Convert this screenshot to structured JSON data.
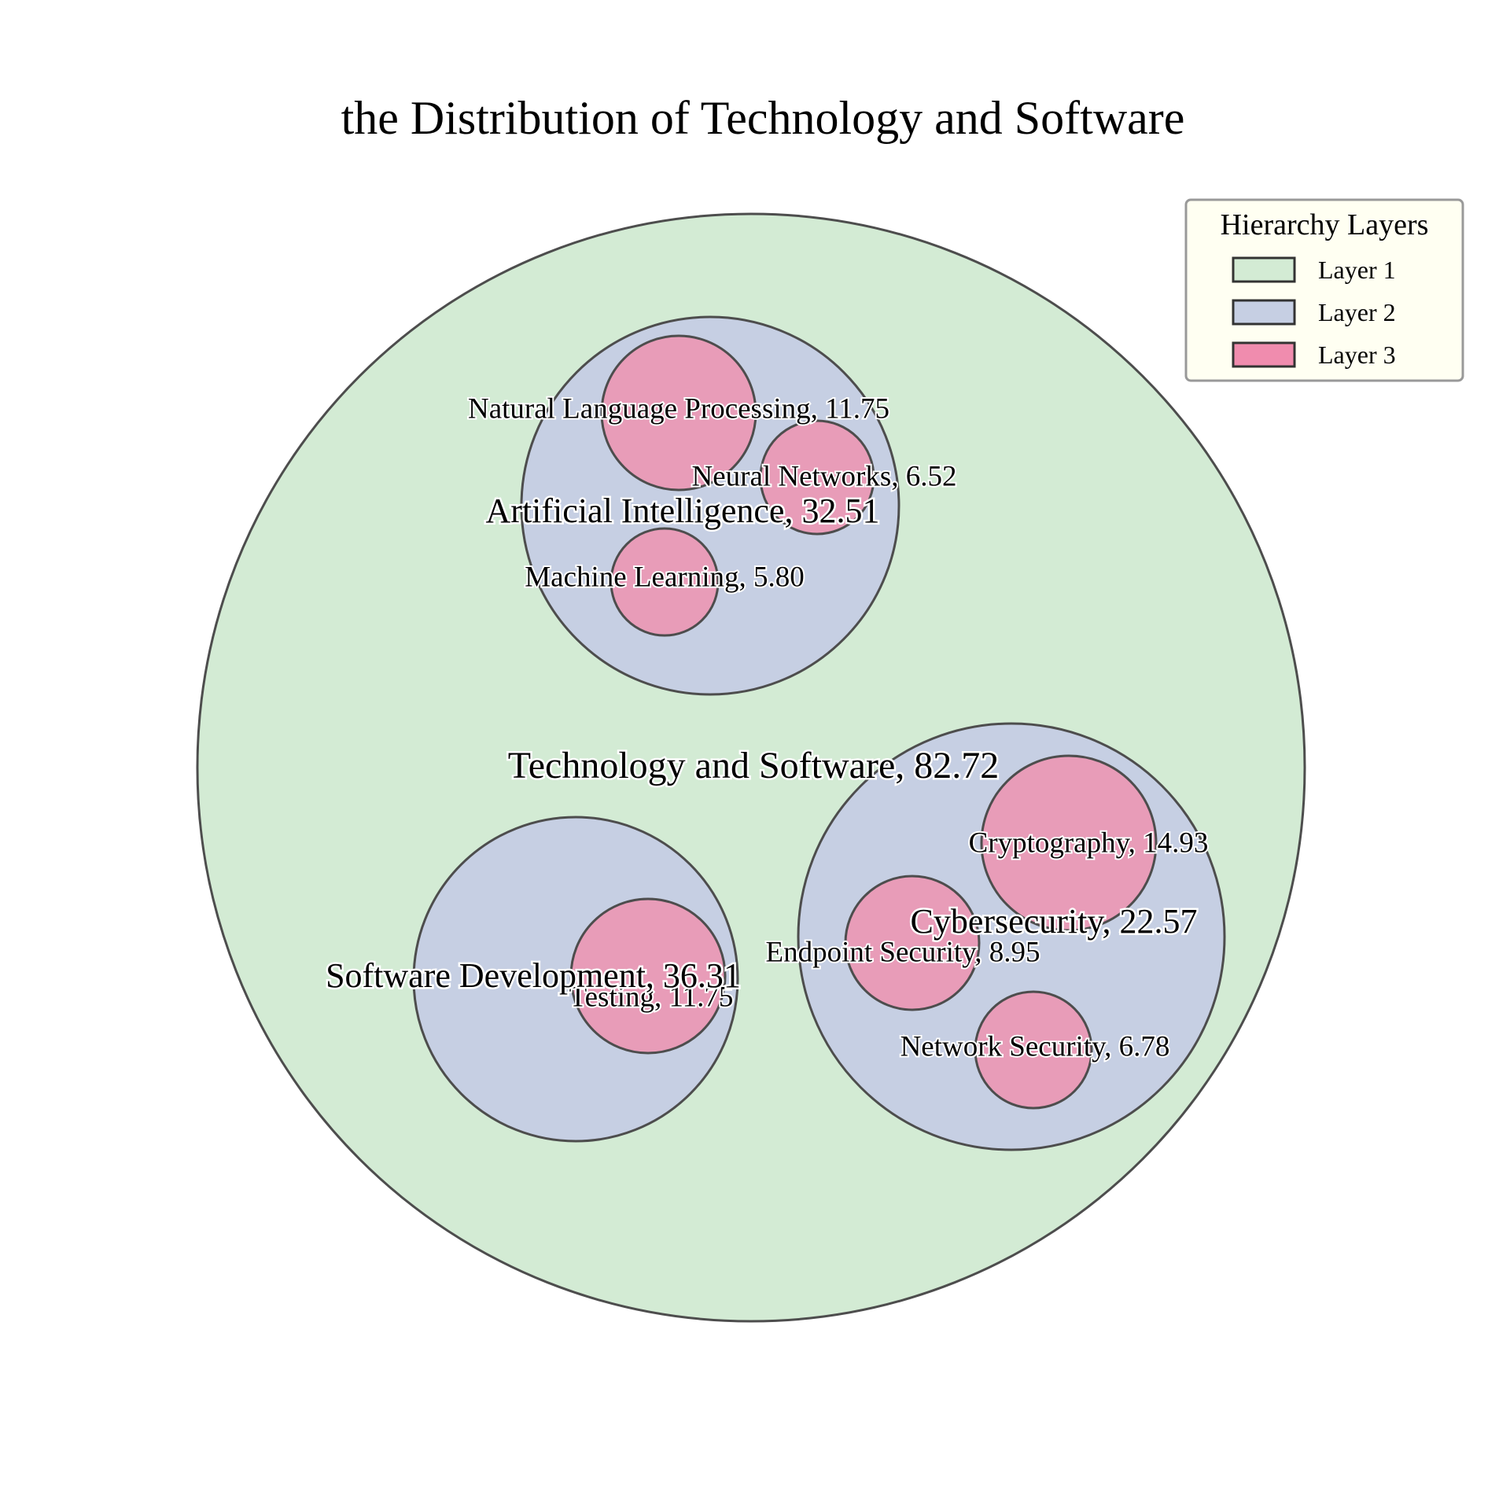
{
  "chart_data": {
    "type": "circle_packing",
    "title": "the Distribution of Technology and Software",
    "legend": {
      "title": "Hierarchy Layers",
      "placement": "top-right",
      "items": [
        {
          "label": "Layer 1",
          "color": "#d3ebd4"
        },
        {
          "label": "Layer 2",
          "color": "#c6cfe3"
        },
        {
          "label": "Layer 3",
          "color": "#f08cae"
        }
      ]
    },
    "colors": {
      "layer1_fill": "#d3ebd4",
      "layer2_fill": "#c6cfe3",
      "layer3_fill": "#e89cb8",
      "stroke": "#4d4d4d"
    },
    "nodes": [
      {
        "id": "root",
        "name": "Technology and Software",
        "value": 82.72,
        "value_label": "82.72",
        "layer": 1,
        "parent": null
      },
      {
        "id": "ai",
        "name": "Artificial Intelligence",
        "value": 32.51,
        "value_label": "32.51",
        "layer": 2,
        "parent": "root"
      },
      {
        "id": "sd",
        "name": "Software Development",
        "value": 36.31,
        "value_label": "36.31",
        "layer": 2,
        "parent": "root"
      },
      {
        "id": "cs",
        "name": "Cybersecurity",
        "value": 22.57,
        "value_label": "22.57",
        "layer": 2,
        "parent": "root"
      },
      {
        "id": "nlp",
        "name": "Natural Language Processing",
        "value": 11.75,
        "value_label": "11.75",
        "layer": 3,
        "parent": "ai"
      },
      {
        "id": "nn",
        "name": "Neural Networks",
        "value": 6.52,
        "value_label": "6.52",
        "layer": 3,
        "parent": "ai"
      },
      {
        "id": "ml",
        "name": "Machine Learning",
        "value": 5.8,
        "value_label": "5.80",
        "layer": 3,
        "parent": "ai"
      },
      {
        "id": "test",
        "name": "Testing",
        "value": 11.75,
        "value_label": "11.75",
        "layer": 3,
        "parent": "sd"
      },
      {
        "id": "crypto",
        "name": "Cryptography",
        "value": 14.93,
        "value_label": "14.93",
        "layer": 3,
        "parent": "cs"
      },
      {
        "id": "endpoint",
        "name": "Endpoint Security",
        "value": 8.95,
        "value_label": "8.95",
        "layer": 3,
        "parent": "cs"
      },
      {
        "id": "netsec",
        "name": "Network Security",
        "value": 6.78,
        "value_label": "6.78",
        "layer": 3,
        "parent": "cs"
      }
    ]
  }
}
